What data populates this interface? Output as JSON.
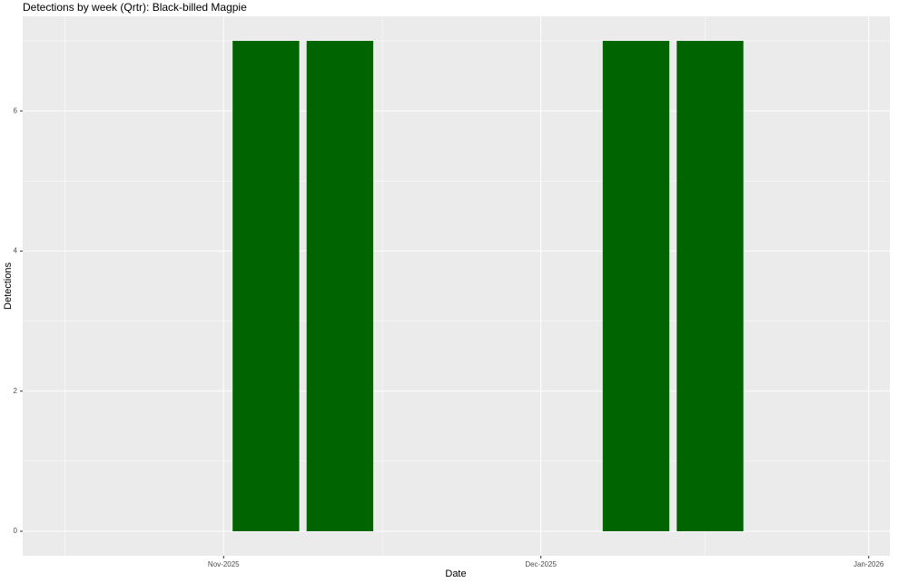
{
  "chart_data": {
    "type": "bar",
    "title": "Detections by week (Qrtr): Black-billed Magpie",
    "x_label": "Date",
    "y_label": "Detections",
    "x": [
      "2025-11-05",
      "2025-11-12",
      "2025-12-10",
      "2025-12-17"
    ],
    "values": [
      7,
      7,
      7,
      7
    ],
    "color": "#006400",
    "xlim": [
      "2025-10-13",
      "2026-01-03"
    ],
    "xticks": [
      {
        "value": "2025-11-01",
        "label": "Nov-2025"
      },
      {
        "value": "2025-12-01",
        "label": "Dec-2025"
      },
      {
        "value": "2026-01-01",
        "label": "Jan-2026"
      }
    ],
    "ylim": [
      -0.35,
      7.35
    ],
    "yticks": [
      0,
      2,
      4,
      6
    ],
    "grid": true
  }
}
